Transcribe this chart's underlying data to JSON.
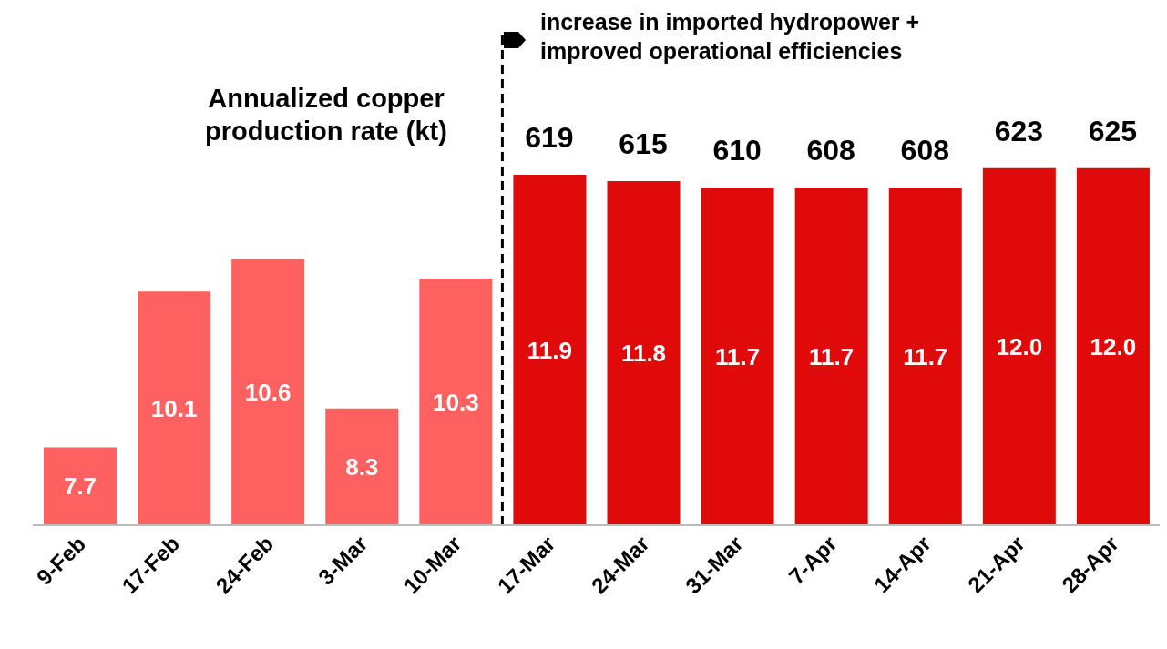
{
  "chart_data": {
    "type": "bar",
    "categories": [
      "9-Feb",
      "17-Feb",
      "24-Feb",
      "3-Mar",
      "10-Mar",
      "17-Mar",
      "24-Mar",
      "31-Mar",
      "7-Apr",
      "14-Apr",
      "21-Apr",
      "28-Apr"
    ],
    "values": [
      7.7,
      10.1,
      10.6,
      8.3,
      10.3,
      11.9,
      11.8,
      11.7,
      11.7,
      11.7,
      12.0,
      12.0
    ],
    "colors": [
      "#ff6060",
      "#ff6060",
      "#ff6060",
      "#ff6060",
      "#ff6060",
      "#e00a0a",
      "#e00a0a",
      "#e00a0a",
      "#e00a0a",
      "#e00a0a",
      "#e00a0a",
      "#e00a0a"
    ],
    "ylim": [
      6.5,
      14.1
    ],
    "value_labels": [
      "7.7",
      "10.1",
      "10.6",
      "8.3",
      "10.3",
      "11.9",
      "11.8",
      "11.7",
      "11.7",
      "11.7",
      "12.0",
      "12.0"
    ],
    "ref_lines": [
      {
        "axis": "x",
        "value": "17-Mar",
        "label": "increase in imported hydropower + improved operational efficiencies",
        "color": "#000000",
        "line_style": "dashed"
      }
    ],
    "annotations": [
      "Annualized copper production rate (kt)",
      {
        "text": "619",
        "x": "17-Mar",
        "y": 11.9
      },
      {
        "text": "615",
        "x": "24-Mar",
        "y": 11.8
      },
      {
        "text": "610",
        "x": "31-Mar",
        "y": 11.7
      },
      {
        "text": "608",
        "x": "7-Apr",
        "y": 11.7
      },
      {
        "text": "608",
        "x": "14-Apr",
        "y": 11.7
      },
      {
        "text": "623",
        "x": "21-Apr",
        "y": 12.0
      },
      {
        "text": "625",
        "x": "28-Apr",
        "y": 12.0
      }
    ]
  }
}
